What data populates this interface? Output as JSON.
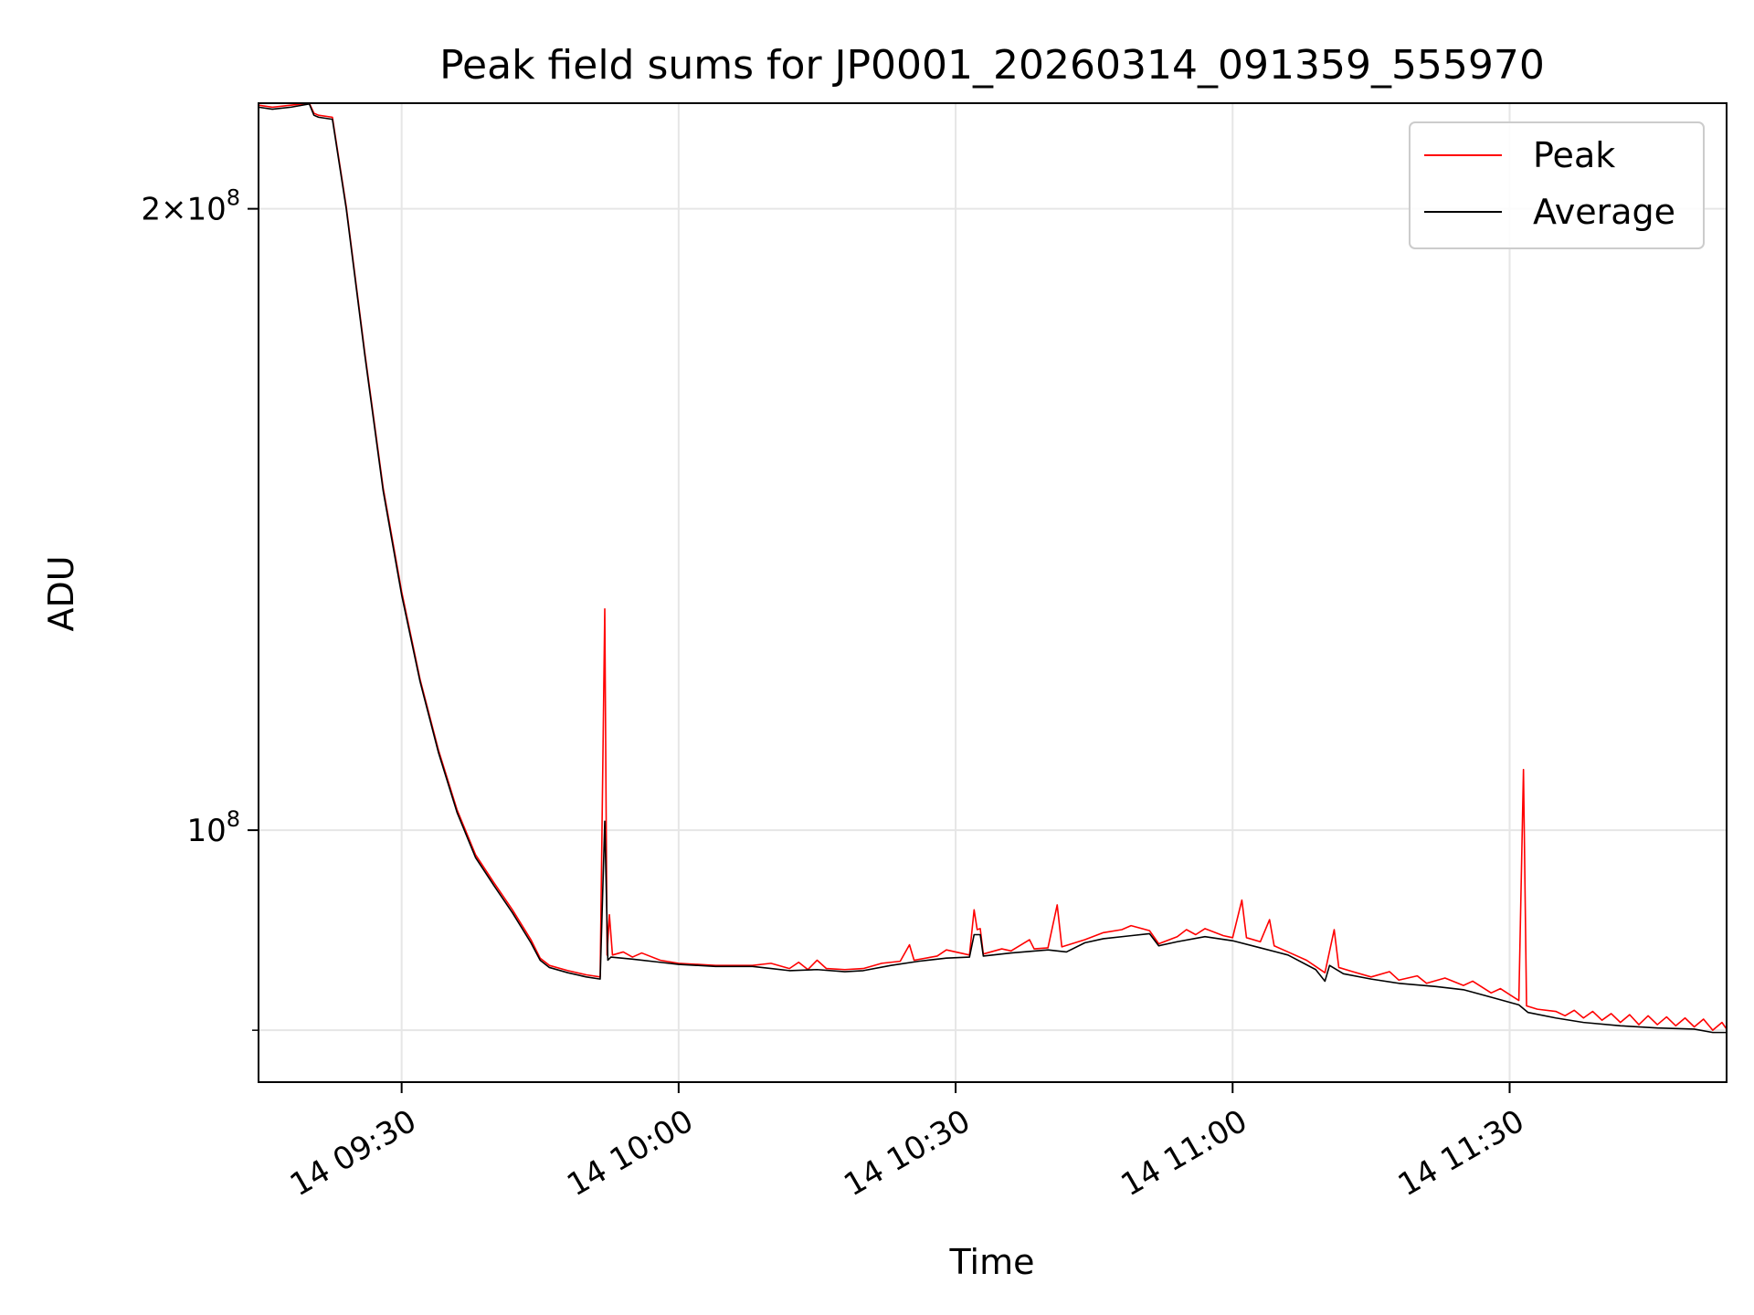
{
  "chart_data": {
    "type": "line",
    "title": "Peak field sums for JP0001_20260314_091359_555970",
    "xlabel": "Time",
    "ylabel": "ADU",
    "x_axis": {
      "type": "time",
      "range": [
        "2026-03-14 09:14:30",
        "2026-03-14 11:53:30"
      ]
    },
    "y_axis": {
      "scale": "log",
      "range": [
        75500000,
        225000000
      ]
    },
    "x_ticks": [
      {
        "value": "2026-03-14 09:30",
        "label": "14 09:30"
      },
      {
        "value": "2026-03-14 10:00",
        "label": "14 10:00"
      },
      {
        "value": "2026-03-14 10:30",
        "label": "14 10:30"
      },
      {
        "value": "2026-03-14 11:00",
        "label": "14 11:00"
      },
      {
        "value": "2026-03-14 11:30",
        "label": "14 11:30"
      }
    ],
    "y_major_ticks": [
      {
        "value": 100000000,
        "base": "10",
        "exp": "8"
      },
      {
        "value": 200000000,
        "mantissa": "2",
        "base": "10",
        "exp": "8"
      }
    ],
    "y_minor_ticks": [
      80000000
    ],
    "grid": true,
    "legend": {
      "position": "top-right",
      "entries": [
        {
          "name": "Peak",
          "color": "#ff0000"
        },
        {
          "name": "Average",
          "color": "#000000"
        }
      ]
    },
    "series": [
      {
        "name": "Average",
        "color": "#000000",
        "points": [
          [
            "2026-03-14 09:14:30",
            224000000
          ],
          [
            "2026-03-14 09:16:00",
            223500000
          ],
          [
            "2026-03-14 09:18:00",
            224000000
          ],
          [
            "2026-03-14 09:20:00",
            224800000
          ],
          [
            "2026-03-14 09:20:30",
            222000000
          ],
          [
            "2026-03-14 09:21:00",
            221500000
          ],
          [
            "2026-03-14 09:22:30",
            221000000
          ],
          [
            "2026-03-14 09:24:00",
            200000000
          ],
          [
            "2026-03-14 09:26:00",
            170000000
          ],
          [
            "2026-03-14 09:28:00",
            146000000
          ],
          [
            "2026-03-14 09:30:00",
            130000000
          ],
          [
            "2026-03-14 09:32:00",
            118000000
          ],
          [
            "2026-03-14 09:34:00",
            109000000
          ],
          [
            "2026-03-14 09:36:00",
            102000000
          ],
          [
            "2026-03-14 09:38:00",
            97000000
          ],
          [
            "2026-03-14 09:40:00",
            94000000
          ],
          [
            "2026-03-14 09:42:00",
            91200000
          ],
          [
            "2026-03-14 09:44:00",
            88200000
          ],
          [
            "2026-03-14 09:45:00",
            86500000
          ],
          [
            "2026-03-14 09:46:00",
            85800000
          ],
          [
            "2026-03-14 09:48:00",
            85300000
          ],
          [
            "2026-03-14 09:50:00",
            84900000
          ],
          [
            "2026-03-14 09:51:30",
            84700000
          ],
          [
            "2026-03-14 09:52:00",
            101000000
          ],
          [
            "2026-03-14 09:52:20",
            86500000
          ],
          [
            "2026-03-14 09:52:40",
            86800000
          ],
          [
            "2026-03-14 09:55:00",
            86600000
          ],
          [
            "2026-03-14 09:58:00",
            86300000
          ],
          [
            "2026-03-14 10:00:00",
            86100000
          ],
          [
            "2026-03-14 10:04:00",
            85900000
          ],
          [
            "2026-03-14 10:08:00",
            85900000
          ],
          [
            "2026-03-14 10:10:00",
            85700000
          ],
          [
            "2026-03-14 10:12:00",
            85500000
          ],
          [
            "2026-03-14 10:15:00",
            85600000
          ],
          [
            "2026-03-14 10:18:00",
            85400000
          ],
          [
            "2026-03-14 10:20:00",
            85500000
          ],
          [
            "2026-03-14 10:23:00",
            86000000
          ],
          [
            "2026-03-14 10:26:00",
            86400000
          ],
          [
            "2026-03-14 10:29:00",
            86700000
          ],
          [
            "2026-03-14 10:31:30",
            86800000
          ],
          [
            "2026-03-14 10:32:00",
            89000000
          ],
          [
            "2026-03-14 10:32:40",
            89000000
          ],
          [
            "2026-03-14 10:33:00",
            86900000
          ],
          [
            "2026-03-14 10:36:00",
            87200000
          ],
          [
            "2026-03-14 10:40:00",
            87500000
          ],
          [
            "2026-03-14 10:42:00",
            87300000
          ],
          [
            "2026-03-14 10:44:00",
            88200000
          ],
          [
            "2026-03-14 10:46:00",
            88600000
          ],
          [
            "2026-03-14 10:49:00",
            88900000
          ],
          [
            "2026-03-14 10:51:00",
            89100000
          ],
          [
            "2026-03-14 10:52:00",
            87900000
          ],
          [
            "2026-03-14 10:54:00",
            88300000
          ],
          [
            "2026-03-14 10:57:00",
            88800000
          ],
          [
            "2026-03-14 11:00:00",
            88400000
          ],
          [
            "2026-03-14 11:03:00",
            87700000
          ],
          [
            "2026-03-14 11:06:00",
            87000000
          ],
          [
            "2026-03-14 11:09:00",
            85600000
          ],
          [
            "2026-03-14 11:10:00",
            84500000
          ],
          [
            "2026-03-14 11:10:30",
            86000000
          ],
          [
            "2026-03-14 11:12:00",
            85200000
          ],
          [
            "2026-03-14 11:15:00",
            84700000
          ],
          [
            "2026-03-14 11:18:00",
            84300000
          ],
          [
            "2026-03-14 11:22:00",
            84000000
          ],
          [
            "2026-03-14 11:25:00",
            83700000
          ],
          [
            "2026-03-14 11:28:00",
            83000000
          ],
          [
            "2026-03-14 11:31:00",
            82300000
          ],
          [
            "2026-03-14 11:32:00",
            81600000
          ],
          [
            "2026-03-14 11:35:00",
            81100000
          ],
          [
            "2026-03-14 11:38:00",
            80700000
          ],
          [
            "2026-03-14 11:42:00",
            80400000
          ],
          [
            "2026-03-14 11:46:00",
            80200000
          ],
          [
            "2026-03-14 11:50:00",
            80100000
          ],
          [
            "2026-03-14 11:52:00",
            79800000
          ],
          [
            "2026-03-14 11:53:30",
            79800000
          ]
        ]
      },
      {
        "name": "Peak",
        "color": "#ff0000",
        "points": [
          [
            "2026-03-14 09:14:30",
            224500000
          ],
          [
            "2026-03-14 09:16:00",
            224000000
          ],
          [
            "2026-03-14 09:18:00",
            224500000
          ],
          [
            "2026-03-14 09:20:00",
            225000000
          ],
          [
            "2026-03-14 09:20:30",
            222500000
          ],
          [
            "2026-03-14 09:21:00",
            222000000
          ],
          [
            "2026-03-14 09:22:30",
            221500000
          ],
          [
            "2026-03-14 09:24:00",
            200500000
          ],
          [
            "2026-03-14 09:26:00",
            170500000
          ],
          [
            "2026-03-14 09:28:00",
            146500000
          ],
          [
            "2026-03-14 09:30:00",
            130500000
          ],
          [
            "2026-03-14 09:32:00",
            118300000
          ],
          [
            "2026-03-14 09:34:00",
            109300000
          ],
          [
            "2026-03-14 09:36:00",
            102300000
          ],
          [
            "2026-03-14 09:38:00",
            97300000
          ],
          [
            "2026-03-14 09:40:00",
            94300000
          ],
          [
            "2026-03-14 09:42:00",
            91500000
          ],
          [
            "2026-03-14 09:44:00",
            88500000
          ],
          [
            "2026-03-14 09:45:00",
            86700000
          ],
          [
            "2026-03-14 09:46:00",
            86000000
          ],
          [
            "2026-03-14 09:48:00",
            85500000
          ],
          [
            "2026-03-14 09:50:00",
            85100000
          ],
          [
            "2026-03-14 09:51:30",
            84900000
          ],
          [
            "2026-03-14 09:52:00",
            128000000
          ],
          [
            "2026-03-14 09:52:15",
            87000000
          ],
          [
            "2026-03-14 09:52:30",
            91000000
          ],
          [
            "2026-03-14 09:52:50",
            87000000
          ],
          [
            "2026-03-14 09:54:00",
            87300000
          ],
          [
            "2026-03-14 09:55:00",
            86800000
          ],
          [
            "2026-03-14 09:56:00",
            87200000
          ],
          [
            "2026-03-14 09:58:00",
            86500000
          ],
          [
            "2026-03-14 10:00:00",
            86200000
          ],
          [
            "2026-03-14 10:04:00",
            86000000
          ],
          [
            "2026-03-14 10:08:00",
            86000000
          ],
          [
            "2026-03-14 10:10:00",
            86200000
          ],
          [
            "2026-03-14 10:12:00",
            85700000
          ],
          [
            "2026-03-14 10:13:00",
            86300000
          ],
          [
            "2026-03-14 10:14:00",
            85600000
          ],
          [
            "2026-03-14 10:15:00",
            86500000
          ],
          [
            "2026-03-14 10:16:00",
            85700000
          ],
          [
            "2026-03-14 10:18:00",
            85600000
          ],
          [
            "2026-03-14 10:20:00",
            85700000
          ],
          [
            "2026-03-14 10:22:00",
            86200000
          ],
          [
            "2026-03-14 10:24:00",
            86400000
          ],
          [
            "2026-03-14 10:25:00",
            88000000
          ],
          [
            "2026-03-14 10:25:30",
            86500000
          ],
          [
            "2026-03-14 10:28:00",
            86900000
          ],
          [
            "2026-03-14 10:29:00",
            87500000
          ],
          [
            "2026-03-14 10:31:30",
            87000000
          ],
          [
            "2026-03-14 10:32:00",
            91500000
          ],
          [
            "2026-03-14 10:32:20",
            89500000
          ],
          [
            "2026-03-14 10:32:40",
            89600000
          ],
          [
            "2026-03-14 10:33:00",
            87100000
          ],
          [
            "2026-03-14 10:35:00",
            87600000
          ],
          [
            "2026-03-14 10:36:00",
            87400000
          ],
          [
            "2026-03-14 10:38:00",
            88500000
          ],
          [
            "2026-03-14 10:38:30",
            87600000
          ],
          [
            "2026-03-14 10:40:00",
            87700000
          ],
          [
            "2026-03-14 10:41:00",
            92000000
          ],
          [
            "2026-03-14 10:41:30",
            87800000
          ],
          [
            "2026-03-14 10:44:00",
            88500000
          ],
          [
            "2026-03-14 10:46:00",
            89200000
          ],
          [
            "2026-03-14 10:48:00",
            89500000
          ],
          [
            "2026-03-14 10:49:00",
            89900000
          ],
          [
            "2026-03-14 10:51:00",
            89400000
          ],
          [
            "2026-03-14 10:52:00",
            88100000
          ],
          [
            "2026-03-14 10:54:00",
            88800000
          ],
          [
            "2026-03-14 10:55:00",
            89500000
          ],
          [
            "2026-03-14 10:56:00",
            89000000
          ],
          [
            "2026-03-14 10:57:00",
            89600000
          ],
          [
            "2026-03-14 10:59:00",
            88900000
          ],
          [
            "2026-03-14 11:00:00",
            88700000
          ],
          [
            "2026-03-14 11:01:00",
            92500000
          ],
          [
            "2026-03-14 11:01:30",
            88700000
          ],
          [
            "2026-03-14 11:03:00",
            88300000
          ],
          [
            "2026-03-14 11:04:00",
            90500000
          ],
          [
            "2026-03-14 11:04:30",
            87900000
          ],
          [
            "2026-03-14 11:06:00",
            87300000
          ],
          [
            "2026-03-14 11:08:00",
            86500000
          ],
          [
            "2026-03-14 11:09:00",
            85900000
          ],
          [
            "2026-03-14 11:10:00",
            85300000
          ],
          [
            "2026-03-14 11:11:00",
            89500000
          ],
          [
            "2026-03-14 11:11:30",
            85800000
          ],
          [
            "2026-03-14 11:13:00",
            85400000
          ],
          [
            "2026-03-14 11:15:00",
            84900000
          ],
          [
            "2026-03-14 11:17:00",
            85400000
          ],
          [
            "2026-03-14 11:18:00",
            84600000
          ],
          [
            "2026-03-14 11:20:00",
            85000000
          ],
          [
            "2026-03-14 11:21:00",
            84300000
          ],
          [
            "2026-03-14 11:23:00",
            84800000
          ],
          [
            "2026-03-14 11:25:00",
            84100000
          ],
          [
            "2026-03-14 11:26:00",
            84500000
          ],
          [
            "2026-03-14 11:28:00",
            83400000
          ],
          [
            "2026-03-14 11:29:00",
            83800000
          ],
          [
            "2026-03-14 11:31:00",
            82700000
          ],
          [
            "2026-03-14 11:31:30",
            107000000
          ],
          [
            "2026-03-14 11:31:50",
            82200000
          ],
          [
            "2026-03-14 11:33:00",
            81900000
          ],
          [
            "2026-03-14 11:35:00",
            81700000
          ],
          [
            "2026-03-14 11:36:00",
            81300000
          ],
          [
            "2026-03-14 11:37:00",
            81800000
          ],
          [
            "2026-03-14 11:38:00",
            81100000
          ],
          [
            "2026-03-14 11:39:00",
            81700000
          ],
          [
            "2026-03-14 11:40:00",
            80900000
          ],
          [
            "2026-03-14 11:41:00",
            81500000
          ],
          [
            "2026-03-14 11:42:00",
            80700000
          ],
          [
            "2026-03-14 11:43:00",
            81400000
          ],
          [
            "2026-03-14 11:44:00",
            80500000
          ],
          [
            "2026-03-14 11:45:00",
            81300000
          ],
          [
            "2026-03-14 11:46:00",
            80500000
          ],
          [
            "2026-03-14 11:47:00",
            81200000
          ],
          [
            "2026-03-14 11:48:00",
            80400000
          ],
          [
            "2026-03-14 11:49:00",
            81100000
          ],
          [
            "2026-03-14 11:50:00",
            80300000
          ],
          [
            "2026-03-14 11:51:00",
            81000000
          ],
          [
            "2026-03-14 11:52:00",
            80000000
          ],
          [
            "2026-03-14 11:53:00",
            80700000
          ],
          [
            "2026-03-14 11:53:30",
            80100000
          ]
        ]
      }
    ]
  }
}
